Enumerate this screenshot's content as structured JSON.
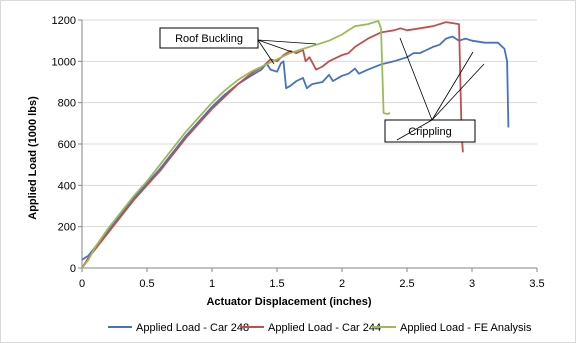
{
  "chart_data": {
    "type": "line",
    "title": "",
    "xlabel": "Actuator Displacement (inches)",
    "ylabel": "Applied Load (1000 lbs)",
    "xlim": [
      0,
      3.5
    ],
    "ylim": [
      0,
      1200
    ],
    "xticks": [
      "0",
      "0.5",
      "1",
      "1.5",
      "2",
      "2.5",
      "3",
      "3.5"
    ],
    "yticks": [
      "0",
      "200",
      "400",
      "600",
      "800",
      "1000",
      "1200"
    ],
    "grid": "horizontal",
    "legend_position": "bottom",
    "series": [
      {
        "name": "Applied Load - Car 248",
        "color": "#4472c4",
        "points": [
          [
            0,
            40
          ],
          [
            0.05,
            60
          ],
          [
            0.1,
            100
          ],
          [
            0.2,
            180
          ],
          [
            0.3,
            260
          ],
          [
            0.4,
            340
          ],
          [
            0.5,
            410
          ],
          [
            0.6,
            480
          ],
          [
            0.7,
            560
          ],
          [
            0.8,
            640
          ],
          [
            0.9,
            710
          ],
          [
            1.0,
            780
          ],
          [
            1.1,
            840
          ],
          [
            1.2,
            890
          ],
          [
            1.3,
            930
          ],
          [
            1.38,
            960
          ],
          [
            1.42,
            990
          ],
          [
            1.45,
            960
          ],
          [
            1.5,
            950
          ],
          [
            1.53,
            990
          ],
          [
            1.55,
            1000
          ],
          [
            1.57,
            870
          ],
          [
            1.6,
            880
          ],
          [
            1.65,
            905
          ],
          [
            1.7,
            920
          ],
          [
            1.73,
            870
          ],
          [
            1.77,
            890
          ],
          [
            1.85,
            900
          ],
          [
            1.9,
            935
          ],
          [
            1.93,
            905
          ],
          [
            2.0,
            930
          ],
          [
            2.05,
            940
          ],
          [
            2.1,
            965
          ],
          [
            2.13,
            940
          ],
          [
            2.2,
            960
          ],
          [
            2.3,
            985
          ],
          [
            2.4,
            1000
          ],
          [
            2.5,
            1020
          ],
          [
            2.55,
            1040
          ],
          [
            2.6,
            1040
          ],
          [
            2.65,
            1055
          ],
          [
            2.7,
            1070
          ],
          [
            2.75,
            1080
          ],
          [
            2.8,
            1110
          ],
          [
            2.85,
            1120
          ],
          [
            2.9,
            1100
          ],
          [
            2.95,
            1110
          ],
          [
            3.0,
            1100
          ],
          [
            3.1,
            1090
          ],
          [
            3.15,
            1090
          ],
          [
            3.2,
            1090
          ],
          [
            3.25,
            1060
          ],
          [
            3.27,
            1000
          ],
          [
            3.28,
            680
          ]
        ]
      },
      {
        "name": "Applied Load - Car 244",
        "color": "#c0504d",
        "points": [
          [
            0,
            0
          ],
          [
            0.03,
            30
          ],
          [
            0.05,
            50
          ],
          [
            0.1,
            90
          ],
          [
            0.2,
            170
          ],
          [
            0.3,
            250
          ],
          [
            0.4,
            330
          ],
          [
            0.5,
            400
          ],
          [
            0.6,
            470
          ],
          [
            0.7,
            550
          ],
          [
            0.8,
            630
          ],
          [
            0.9,
            700
          ],
          [
            1.0,
            770
          ],
          [
            1.1,
            830
          ],
          [
            1.2,
            890
          ],
          [
            1.3,
            940
          ],
          [
            1.4,
            980
          ],
          [
            1.45,
            1010
          ],
          [
            1.5,
            1000
          ],
          [
            1.55,
            1030
          ],
          [
            1.6,
            1050
          ],
          [
            1.65,
            1040
          ],
          [
            1.7,
            1055
          ],
          [
            1.72,
            1000
          ],
          [
            1.75,
            1020
          ],
          [
            1.8,
            960
          ],
          [
            1.85,
            975
          ],
          [
            1.9,
            1000
          ],
          [
            2.0,
            1030
          ],
          [
            2.05,
            1040
          ],
          [
            2.1,
            1070
          ],
          [
            2.15,
            1090
          ],
          [
            2.2,
            1110
          ],
          [
            2.3,
            1140
          ],
          [
            2.4,
            1150
          ],
          [
            2.45,
            1160
          ],
          [
            2.5,
            1150
          ],
          [
            2.6,
            1160
          ],
          [
            2.7,
            1170
          ],
          [
            2.8,
            1190
          ],
          [
            2.85,
            1185
          ],
          [
            2.9,
            1180
          ],
          [
            2.92,
            650
          ],
          [
            2.93,
            560
          ]
        ]
      },
      {
        "name": "Applied Load - FE Analysis",
        "color": "#9bbb59",
        "points": [
          [
            0,
            0
          ],
          [
            0.05,
            40
          ],
          [
            0.1,
            100
          ],
          [
            0.2,
            190
          ],
          [
            0.3,
            270
          ],
          [
            0.4,
            350
          ],
          [
            0.5,
            420
          ],
          [
            0.6,
            500
          ],
          [
            0.7,
            580
          ],
          [
            0.8,
            660
          ],
          [
            0.9,
            730
          ],
          [
            1.0,
            800
          ],
          [
            1.1,
            860
          ],
          [
            1.2,
            910
          ],
          [
            1.3,
            950
          ],
          [
            1.4,
            980
          ],
          [
            1.5,
            1010
          ],
          [
            1.6,
            1040
          ],
          [
            1.7,
            1060
          ],
          [
            1.8,
            1080
          ],
          [
            1.9,
            1100
          ],
          [
            2.0,
            1130
          ],
          [
            2.05,
            1150
          ],
          [
            2.1,
            1170
          ],
          [
            2.2,
            1180
          ],
          [
            2.25,
            1190
          ],
          [
            2.28,
            1195
          ],
          [
            2.3,
            1160
          ],
          [
            2.32,
            750
          ],
          [
            2.35,
            745
          ],
          [
            2.37,
            750
          ]
        ]
      }
    ],
    "annotations": [
      {
        "text": "Roof Buckling",
        "box": "upper-left"
      },
      {
        "text": "Crippling",
        "box": "right"
      }
    ]
  }
}
